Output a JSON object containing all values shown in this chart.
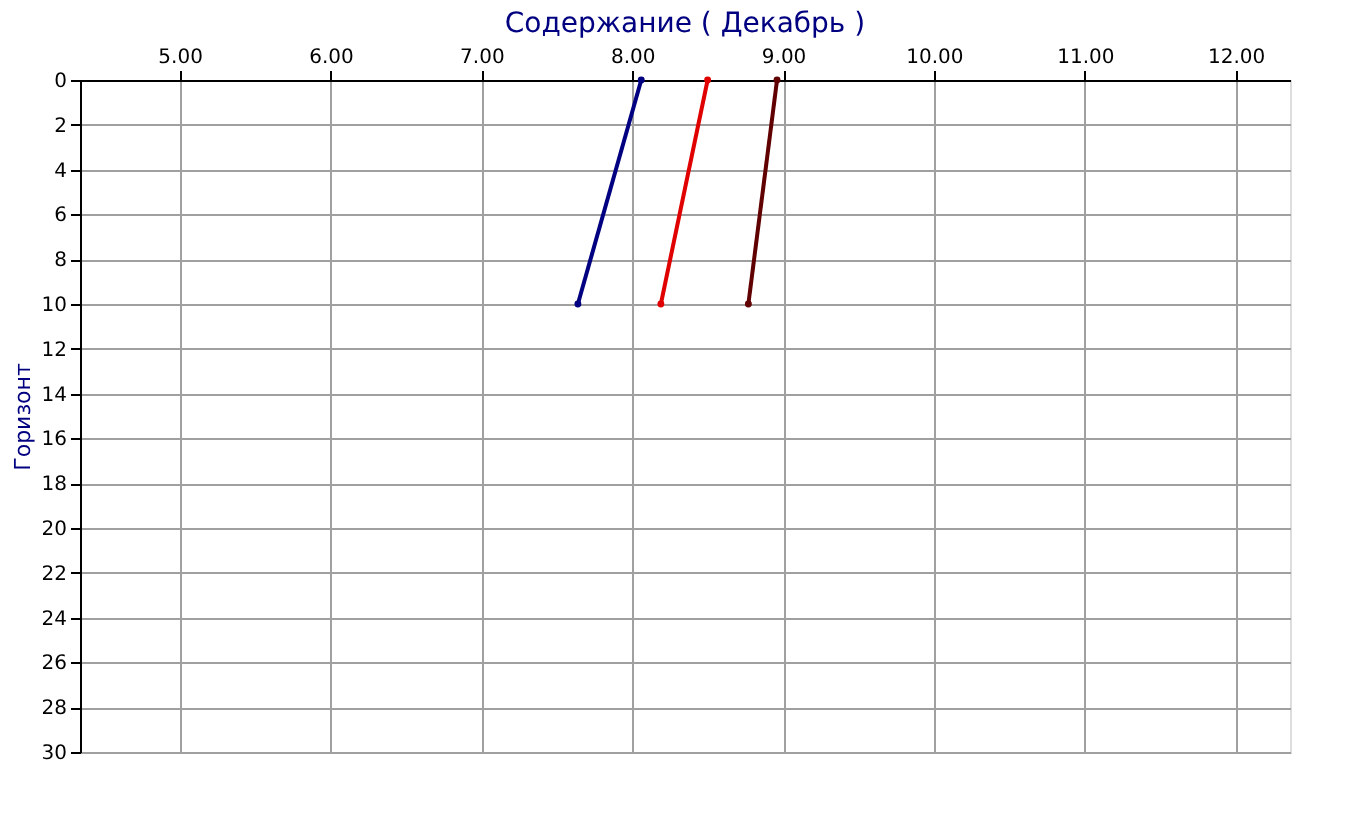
{
  "chart_data": {
    "type": "line",
    "title": "Содержание    ( Декабрь )",
    "ylabel": "Горизонт",
    "series": [
      {
        "color": "#000080",
        "x": [
          8.06,
          7.64
        ],
        "values": [
          0,
          10
        ]
      },
      {
        "color": "#e00000",
        "x": [
          8.5,
          8.19
        ],
        "values": [
          0,
          10
        ]
      },
      {
        "color": "#600000",
        "x": [
          8.96,
          8.77
        ],
        "values": [
          0,
          10
        ]
      }
    ],
    "xlim": [
      4.34,
      12.36
    ],
    "xticks": [
      {
        "value": 5,
        "label": "5.00"
      },
      {
        "value": 6,
        "label": "6.00"
      },
      {
        "value": 7,
        "label": "7.00"
      },
      {
        "value": 8,
        "label": "8.00"
      },
      {
        "value": 9,
        "label": "9.00"
      },
      {
        "value": 10,
        "label": "10.00"
      },
      {
        "value": 11,
        "label": "11.00"
      },
      {
        "value": 12,
        "label": "12.00"
      }
    ],
    "ylim": [
      30,
      0
    ],
    "yticks": [
      0,
      2,
      4,
      6,
      8,
      10,
      12,
      14,
      16,
      18,
      20,
      22,
      24,
      26,
      28,
      30
    ],
    "grid": true,
    "marker": "circle",
    "line_style": "solid"
  }
}
